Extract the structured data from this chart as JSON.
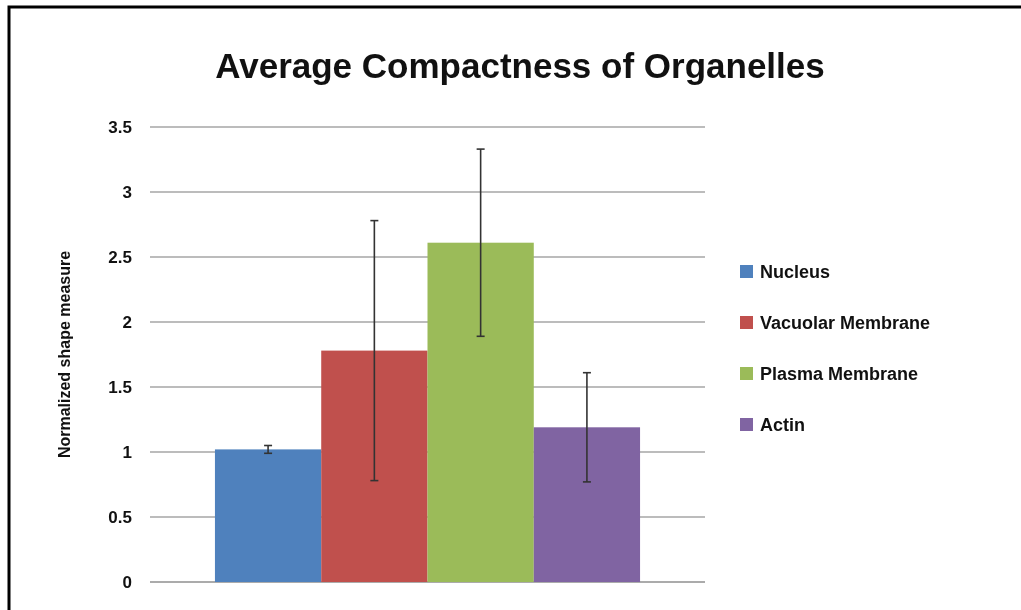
{
  "chart_data": {
    "type": "bar",
    "title": "Average Compactness of Organelles",
    "ylabel": "Normalized shape measure",
    "categories": [
      null
    ],
    "series": [
      {
        "name": "Nucleus",
        "color": "#4f81bd",
        "values": [
          1.02
        ],
        "errors": [
          0.03
        ]
      },
      {
        "name": "Vacuolar Membrane",
        "color": "#c0504d",
        "values": [
          1.78
        ],
        "errors": [
          1.0
        ]
      },
      {
        "name": "Plasma Membrane",
        "color": "#9bbb59",
        "values": [
          2.61
        ],
        "errors": [
          0.72
        ]
      },
      {
        "name": "Actin",
        "color": "#8064a2",
        "values": [
          1.19
        ],
        "errors": [
          0.42
        ]
      }
    ],
    "ylim": [
      0,
      3.5
    ],
    "yticks": [
      0,
      0.5,
      1,
      1.5,
      2,
      2.5,
      3,
      3.5
    ],
    "grid": "y",
    "legend": "right"
  }
}
